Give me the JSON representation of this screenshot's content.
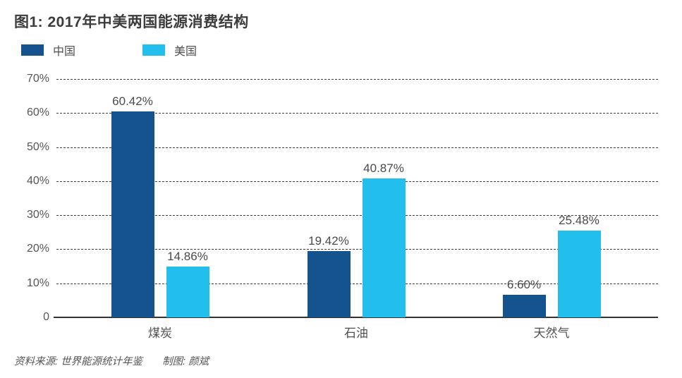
{
  "title": "图1: 2017年中美两国能源消费结构",
  "legend": [
    {
      "label": "中国",
      "color": "#15538F"
    },
    {
      "label": "美国",
      "color": "#22BEEC"
    }
  ],
  "footer": {
    "source": "资料来源: 世界能源统计年鉴",
    "credit": "制图: 颜斌"
  },
  "chart_data": {
    "type": "bar",
    "title": "图1: 2017年中美两国能源消费结构",
    "categories": [
      "煤炭",
      "石油",
      "天然气"
    ],
    "series": [
      {
        "name": "中国",
        "color": "#15538F",
        "values": [
          60.42,
          19.42,
          6.6
        ],
        "labels": [
          "60.42%",
          "19.42%",
          "6.60%"
        ]
      },
      {
        "name": "美国",
        "color": "#22BEEC",
        "values": [
          14.86,
          40.87,
          25.48
        ],
        "labels": [
          "14.86%",
          "40.87%",
          "25.48%"
        ]
      }
    ],
    "xlabel": "",
    "ylabel": "",
    "ylim": [
      0,
      70
    ],
    "ytick_step": 10,
    "yticks": [
      "0",
      "10%",
      "20%",
      "30%",
      "40%",
      "50%",
      "60%",
      "70%"
    ],
    "grid": "horizontal-dashed",
    "baseline": "solid",
    "legend_position": "top-left",
    "value_labels": "above-bars"
  }
}
